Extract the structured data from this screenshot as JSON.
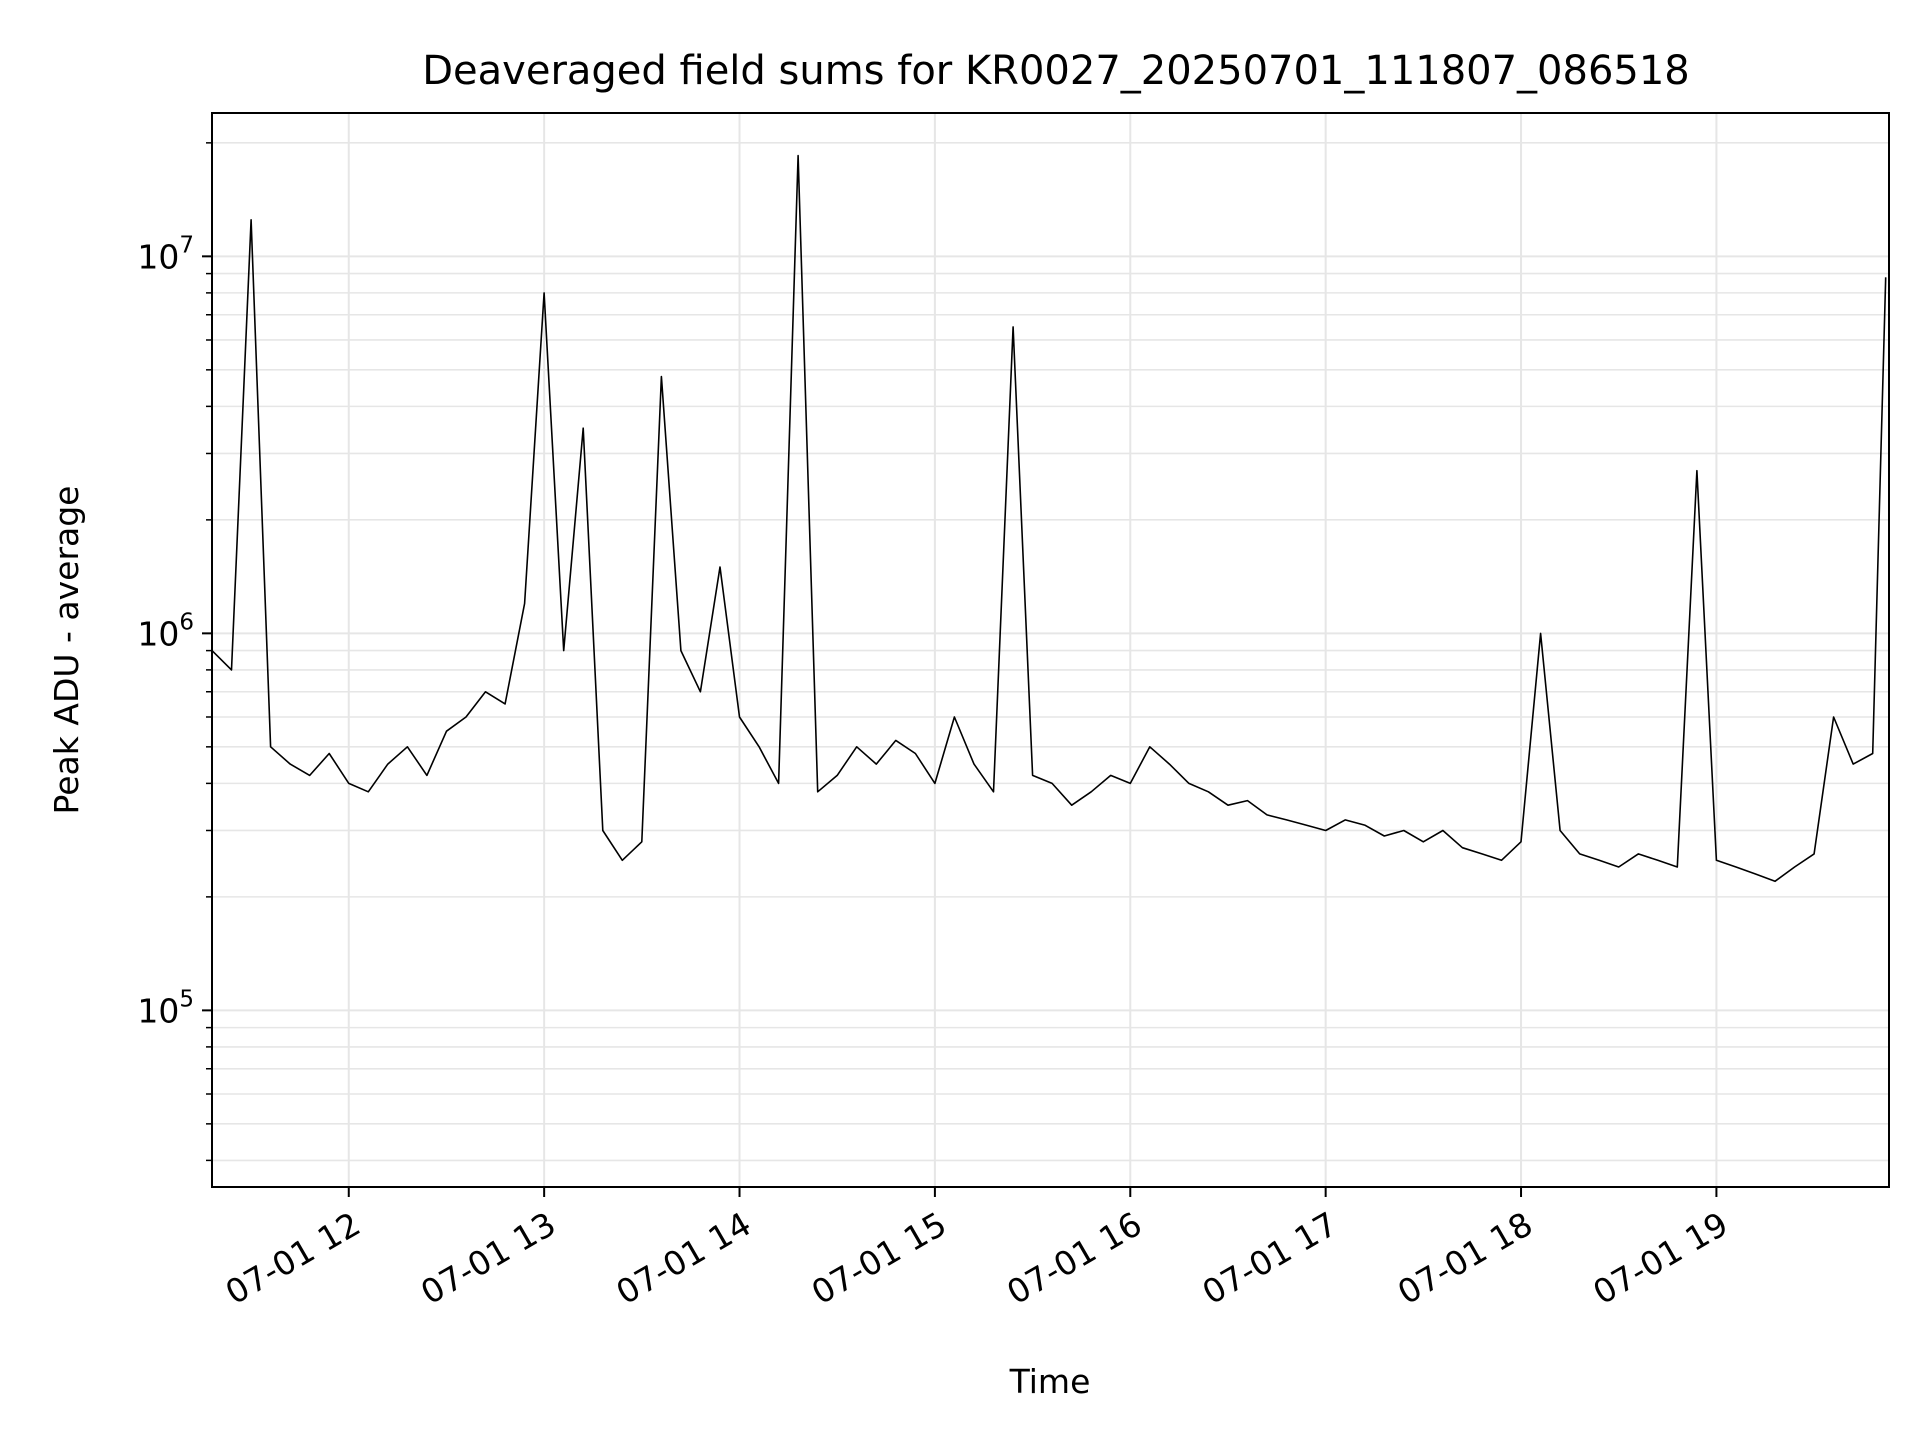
{
  "chart_data": {
    "type": "line",
    "title": "Deaveraged field sums for KR0027_20250701_111807_086518",
    "xlabel": "Time",
    "ylabel": "Peak ADU - average",
    "yscale": "log",
    "ylim": [
      34000,
      24000000
    ],
    "xlim": [
      "07-01 11:18",
      "07-01 19:53"
    ],
    "grid": true,
    "line_color": "#000000",
    "grid_color": "#e6e6e6",
    "x_ticks": [
      "07-01 12",
      "07-01 13",
      "07-01 14",
      "07-01 15",
      "07-01 16",
      "07-01 17",
      "07-01 18",
      "07-01 19"
    ],
    "y_ticks": [
      {
        "base": "10",
        "exp": "5",
        "value": 100000
      },
      {
        "base": "10",
        "exp": "6",
        "value": 1000000
      },
      {
        "base": "10",
        "exp": "7",
        "value": 10000000
      }
    ],
    "series": [
      {
        "x": [
          "07-01 11:18",
          "07-01 11:24",
          "07-01 11:30",
          "07-01 11:36",
          "07-01 11:42",
          "07-01 11:48",
          "07-01 11:54",
          "07-01 12:00",
          "07-01 12:06",
          "07-01 12:12",
          "07-01 12:18",
          "07-01 12:24",
          "07-01 12:30",
          "07-01 12:36",
          "07-01 12:42",
          "07-01 12:48",
          "07-01 12:54",
          "07-01 13:00",
          "07-01 13:06",
          "07-01 13:12",
          "07-01 13:18",
          "07-01 13:24",
          "07-01 13:30",
          "07-01 13:36",
          "07-01 13:42",
          "07-01 13:48",
          "07-01 13:54",
          "07-01 14:00",
          "07-01 14:06",
          "07-01 14:12",
          "07-01 14:18",
          "07-01 14:24",
          "07-01 14:30",
          "07-01 14:36",
          "07-01 14:42",
          "07-01 14:48",
          "07-01 14:54",
          "07-01 15:00",
          "07-01 15:06",
          "07-01 15:12",
          "07-01 15:18",
          "07-01 15:24",
          "07-01 15:30",
          "07-01 15:36",
          "07-01 15:42",
          "07-01 15:48",
          "07-01 15:54",
          "07-01 16:00",
          "07-01 16:06",
          "07-01 16:12",
          "07-01 16:18",
          "07-01 16:24",
          "07-01 16:30",
          "07-01 16:36",
          "07-01 16:42",
          "07-01 16:48",
          "07-01 16:54",
          "07-01 17:00",
          "07-01 17:06",
          "07-01 17:12",
          "07-01 17:18",
          "07-01 17:24",
          "07-01 17:30",
          "07-01 17:36",
          "07-01 17:42",
          "07-01 17:48",
          "07-01 17:54",
          "07-01 18:00",
          "07-01 18:06",
          "07-01 18:12",
          "07-01 18:18",
          "07-01 18:24",
          "07-01 18:30",
          "07-01 18:36",
          "07-01 18:42",
          "07-01 18:48",
          "07-01 18:54",
          "07-01 19:00",
          "07-01 19:06",
          "07-01 19:12",
          "07-01 19:18",
          "07-01 19:24",
          "07-01 19:30",
          "07-01 19:36",
          "07-01 19:42",
          "07-01 19:48",
          "07-01 19:52"
        ],
        "y": [
          900000,
          800000,
          12500000,
          500000,
          450000,
          420000,
          480000,
          400000,
          380000,
          450000,
          500000,
          420000,
          550000,
          600000,
          700000,
          650000,
          1200000,
          8000000,
          900000,
          3500000,
          300000,
          250000,
          280000,
          4800000,
          900000,
          700000,
          1500000,
          600000,
          500000,
          400000,
          18500000,
          380000,
          420000,
          500000,
          450000,
          520000,
          480000,
          400000,
          600000,
          450000,
          380000,
          6500000,
          420000,
          400000,
          350000,
          380000,
          420000,
          400000,
          500000,
          450000,
          400000,
          380000,
          350000,
          360000,
          330000,
          320000,
          310000,
          300000,
          320000,
          310000,
          290000,
          300000,
          280000,
          300000,
          270000,
          260000,
          250000,
          280000,
          1000000,
          300000,
          260000,
          250000,
          240000,
          260000,
          250000,
          240000,
          2700000,
          250000,
          240000,
          230000,
          220000,
          240000,
          260000,
          600000,
          450000,
          480000,
          8800000
        ]
      }
    ]
  }
}
